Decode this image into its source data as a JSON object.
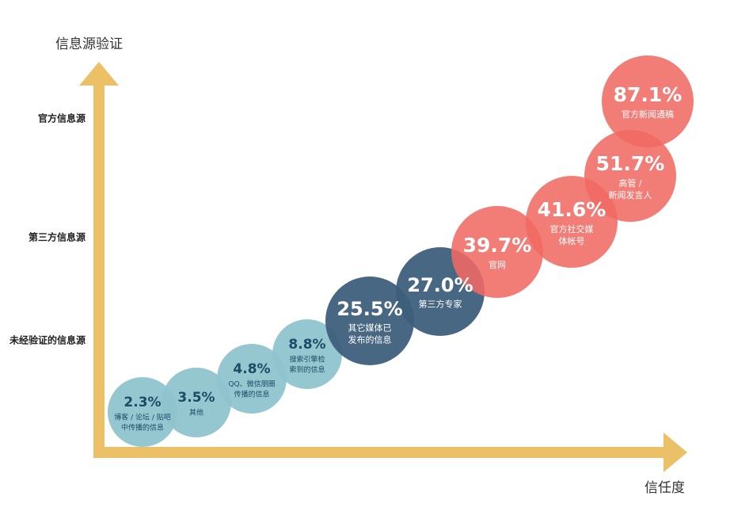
{
  "chart_data": {
    "type": "bubble",
    "y_label": "信息源验证",
    "x_label": "信任度",
    "series": [
      {
        "name": "未经验证的信息源",
        "color": "#8ec4cd",
        "values": [
          2.3,
          3.5,
          4.8,
          8.8
        ],
        "value_labels": [
          "2.3%",
          "3.5%",
          "4.8%",
          "8.8%"
        ],
        "labels": [
          [
            "博客 / 论坛 / 贴吧",
            "中传播的信息"
          ],
          [
            "其他"
          ],
          [
            "QQ、微信朋圈",
            "传播的信息"
          ],
          [
            "搜索引擎检",
            "索到的信息"
          ]
        ]
      },
      {
        "name": "第三方信息源",
        "color": "#3e5f7b",
        "values": [
          25.5,
          27.0
        ],
        "value_labels": [
          "25.5%",
          "27.0%"
        ],
        "labels": [
          [
            "其它媒体已",
            "发布的信息"
          ],
          [
            "第三方专家"
          ]
        ]
      },
      {
        "name": "官方信息源",
        "color": "#f06a63",
        "values": [
          39.7,
          41.6,
          51.7,
          87.1
        ],
        "value_labels": [
          "39.7%",
          "41.6%",
          "51.7%",
          "87.1%"
        ],
        "labels": [
          [
            "官网"
          ],
          [
            "官方社交媒",
            "体帐号"
          ],
          [
            "高管 /",
            "新闻发言人"
          ],
          [
            "官方新闻通稿"
          ]
        ]
      }
    ]
  }
}
